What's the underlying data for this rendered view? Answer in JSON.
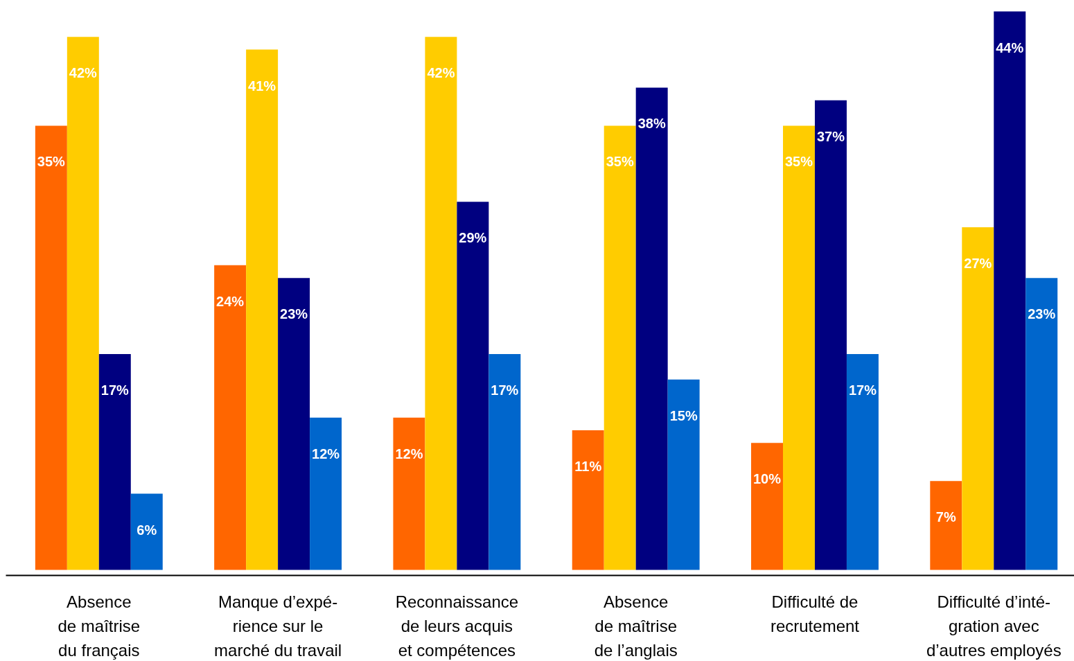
{
  "chart_data": {
    "type": "bar",
    "categories": [
      "Absence\nde maîtrise\ndu français",
      "Manque d’expé-\nrience sur le\nmarché du travail",
      "Reconnaissance\nde leurs acquis\net compétences",
      "Absence\nde maîtrise\nde l’anglais",
      "Difficulté de\nrecrutement",
      "Difficulté d’inté-\ngration avec\nd’autres employés"
    ],
    "series": [
      {
        "color": "#ff6600",
        "values": [
          35,
          24,
          12,
          11,
          10,
          7
        ],
        "value_labels": [
          "35%",
          "24%",
          "12%",
          "11%",
          "10%",
          "7%"
        ]
      },
      {
        "color": "#ffcc00",
        "values": [
          42,
          41,
          42,
          35,
          35,
          27
        ],
        "value_labels": [
          "42%",
          "41%",
          "42%",
          "35%",
          "35%",
          "27%"
        ]
      },
      {
        "color": "#000080",
        "values": [
          17,
          23,
          29,
          38,
          37,
          44
        ],
        "value_labels": [
          "17%",
          "23%",
          "29%",
          "38%",
          "37%",
          "44%"
        ]
      },
      {
        "color": "#0066cc",
        "values": [
          6,
          12,
          17,
          15,
          17,
          23
        ],
        "value_labels": [
          "6%",
          "12%",
          "17%",
          "15%",
          "17%",
          "23%"
        ]
      }
    ],
    "tick_labels": "x"
  }
}
